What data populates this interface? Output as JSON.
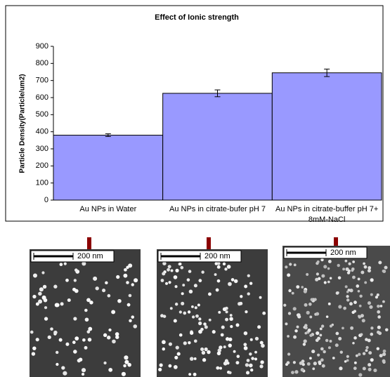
{
  "chart_data": {
    "type": "bar",
    "title": "Effect of Ionic strength",
    "y_label": "Particle Density(Particle/um2)",
    "categories": [
      "Au NPs in Water",
      "Au NPs in citrate-bufer pH 7",
      "Au NPs in citrate-buffer pH 7+ 8mM-NaCl"
    ],
    "values": [
      380,
      625,
      745
    ],
    "errors": [
      8,
      20,
      22
    ],
    "color": "#9999ff",
    "ylim": [
      0,
      900
    ],
    "yticks": [
      0,
      100,
      200,
      300,
      400,
      500,
      600,
      700,
      800,
      900
    ],
    "grid": false
  },
  "images": [
    {
      "scale_label": "200 nm"
    },
    {
      "scale_label": "200 nm"
    },
    {
      "scale_label": "200 nm"
    }
  ]
}
